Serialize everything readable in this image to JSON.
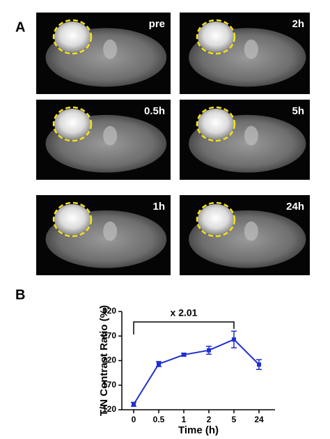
{
  "panel_labels": [
    "A",
    "B"
  ],
  "images": {
    "labels": [
      "pre",
      "2h",
      "0.5h",
      "5h",
      "1h",
      "24h"
    ]
  },
  "chart_data": {
    "type": "line",
    "xlabel": "Time (h)",
    "ylabel": "T/N Contrast Ratio (%)",
    "annotation": "x 2.01",
    "categories": [
      "0",
      "0.5",
      "1",
      "2",
      "5",
      "24"
    ],
    "series": [
      {
        "name": null,
        "color": "#1f2fd0",
        "values": [
          131,
          213,
          232,
          241,
          263,
          212
        ],
        "errors": [
          4,
          5,
          3,
          8,
          17,
          10
        ]
      }
    ],
    "ylim": [
      120,
      320
    ],
    "yticks": [
      120,
      170,
      220,
      270,
      320
    ]
  }
}
